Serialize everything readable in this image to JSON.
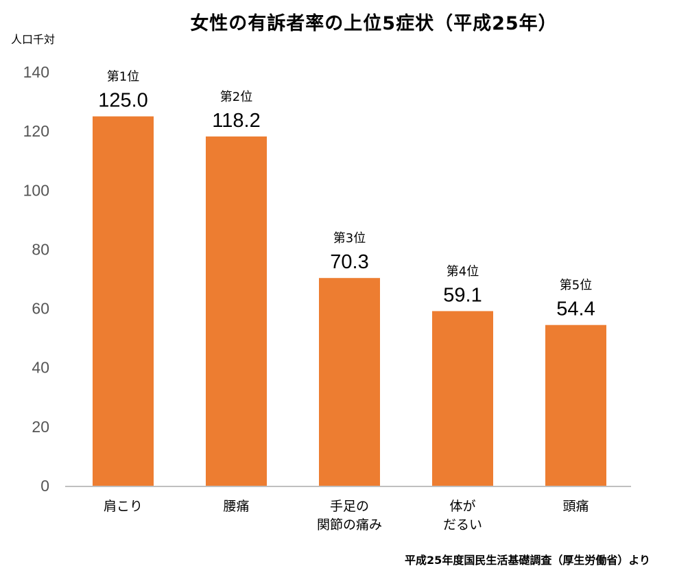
{
  "chart_data": {
    "type": "bar",
    "title": "女性の有訴者率の上位5症状（平成25年）",
    "ylabel": "人口千対",
    "xlabel": "",
    "ylim": [
      0,
      140
    ],
    "yticks": [
      "0",
      "20",
      "40",
      "60",
      "80",
      "100",
      "120",
      "140"
    ],
    "grid": false,
    "categories": [
      [
        "肩こり"
      ],
      [
        "腰痛"
      ],
      [
        "手足の",
        "関節の痛み"
      ],
      [
        "体が",
        "だるい"
      ],
      [
        "頭痛"
      ]
    ],
    "values": [
      125.0,
      118.2,
      70.3,
      59.1,
      54.4
    ],
    "value_labels": [
      "125.0",
      "118.2",
      "70.3",
      "59.1",
      "54.4"
    ],
    "rank_labels": [
      "第1位",
      "第2位",
      "第3位",
      "第4位",
      "第5位"
    ],
    "bar_color": "#ED7D31",
    "axis_color": "#BFBFBF",
    "source": "平成25年度国民生活基礎調査（厚生労働省）より"
  }
}
